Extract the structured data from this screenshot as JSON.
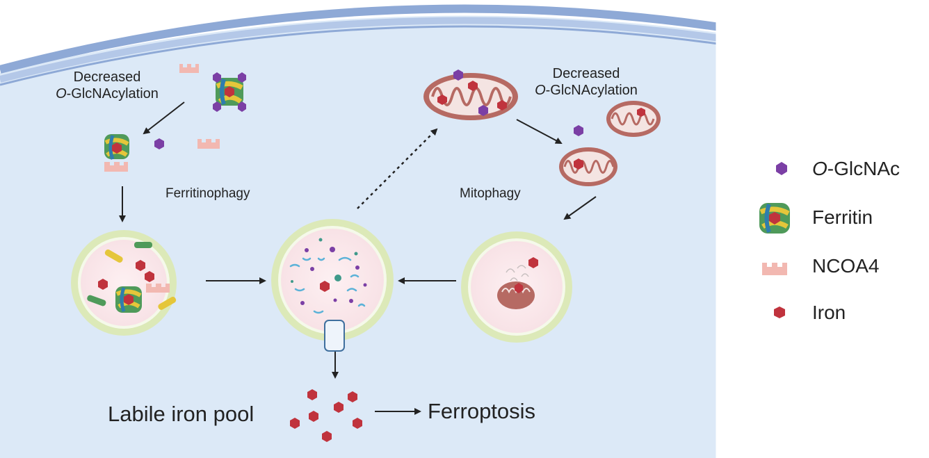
{
  "labels": {
    "decreased_left_line1": "Decreased",
    "decreased_left_line2_italic": "O",
    "decreased_left_line2_rest": "-GlcNAcylation",
    "decreased_right_line1": "Decreased",
    "decreased_right_line2_italic": "O",
    "decreased_right_line2_rest": "-GlcNAcylation",
    "ferritinophagy": "Ferritinophagy",
    "mitophagy": "Mitophagy",
    "labile_iron_pool": "Labile iron pool",
    "ferroptosis": "Ferroptosis"
  },
  "legend": [
    {
      "icon": "o-glcnac-hexagon-icon",
      "italic": "O",
      "text": "-GlcNAc"
    },
    {
      "icon": "ferritin-icon",
      "italic": "",
      "text": "Ferritin"
    },
    {
      "icon": "ncoa4-icon",
      "italic": "",
      "text": "NCOA4"
    },
    {
      "icon": "iron-hexagon-icon",
      "italic": "",
      "text": "Iron"
    }
  ],
  "colors": {
    "cytoplasm": "#dce9f7",
    "membrane_outer": "#8ea9d6",
    "membrane_inner": "#b4c8e8",
    "lysosome_ring": "#dce9b8",
    "lysosome_fill": "#fbe8ec",
    "o_glcnac": "#7b3fa5",
    "iron": "#c0333d",
    "ncoa4": "#f2b8b1",
    "mitochondrion": "#b66a63"
  }
}
